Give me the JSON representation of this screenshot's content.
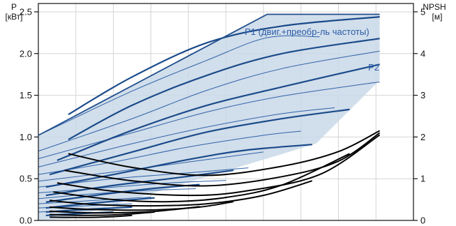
{
  "chart_data": {
    "type": "line",
    "left_axis": {
      "label_line1": "P",
      "label_line2": "[кВт]",
      "ticks": [
        "0.0",
        "0.5",
        "1.0",
        "1.5",
        "2.0",
        "2.5"
      ],
      "ylim": [
        0,
        2.6
      ]
    },
    "right_axis": {
      "label_line1": "NPSH",
      "label_line2": "[м]",
      "ticks": [
        "0",
        "1",
        "2",
        "3",
        "4",
        "5"
      ],
      "ylim": [
        0,
        5.2
      ]
    },
    "xlim": [
      0,
      10
    ],
    "grid": true,
    "annotations": {
      "p1": "P1 (двиг.+преобр-ль частоты)",
      "p2": "P2"
    },
    "colors": {
      "envelope_fill": "#c9d8e8",
      "envelope_edge": "#1f4e8c",
      "thick_curve": "#1a4a8a",
      "thin_curve": "#2f62a8",
      "npsh_curve": "#000000",
      "grid": "#d4d4d4",
      "annotation": "#2a5ca8"
    },
    "envelope": {
      "upper": [
        [
          0,
          1.02
        ],
        [
          6.1,
          2.47
        ],
        [
          9.1,
          2.47
        ]
      ],
      "lower_right": [
        [
          9.1,
          1.68
        ],
        [
          7.4,
          0.92
        ],
        [
          0.8,
          0.02
        ],
        [
          0,
          0
        ]
      ]
    },
    "p1_curves": [
      [
        [
          0.8,
          1.27
        ],
        [
          2.5,
          1.72
        ],
        [
          4.5,
          2.13
        ],
        [
          6.5,
          2.33
        ],
        [
          9.1,
          2.44
        ]
      ],
      [
        [
          0.8,
          0.97
        ],
        [
          2.5,
          1.38
        ],
        [
          4.5,
          1.74
        ],
        [
          6.5,
          2.0
        ],
        [
          9.1,
          2.18
        ]
      ],
      [
        [
          0.5,
          0.72
        ],
        [
          2.5,
          1.08
        ],
        [
          4.5,
          1.38
        ],
        [
          6.5,
          1.6
        ],
        [
          9.1,
          1.87
        ]
      ],
      [
        [
          0.3,
          0.55
        ],
        [
          2.5,
          0.82
        ],
        [
          4.5,
          1.06
        ],
        [
          6.5,
          1.22
        ],
        [
          8.3,
          1.33
        ]
      ],
      [
        [
          0.2,
          0.4
        ],
        [
          2.0,
          0.55
        ],
        [
          4.0,
          0.73
        ],
        [
          5.5,
          0.84
        ],
        [
          7.3,
          0.91
        ]
      ],
      [
        [
          0.2,
          0.3
        ],
        [
          2.0,
          0.42
        ],
        [
          3.5,
          0.5
        ],
        [
          5.2,
          0.6
        ]
      ],
      [
        [
          0.2,
          0.22
        ],
        [
          1.5,
          0.3
        ],
        [
          3.0,
          0.38
        ],
        [
          4.3,
          0.43
        ]
      ],
      [
        [
          0.2,
          0.15
        ],
        [
          1.5,
          0.21
        ],
        [
          3.1,
          0.27
        ]
      ],
      [
        [
          0.2,
          0.1
        ],
        [
          1.2,
          0.13
        ],
        [
          2.5,
          0.16
        ]
      ],
      [
        [
          0.2,
          0.06
        ],
        [
          1.0,
          0.08
        ],
        [
          2.0,
          0.1
        ]
      ]
    ],
    "p2_curves": [
      [
        [
          0,
          1.02
        ],
        [
          2.5,
          1.55
        ],
        [
          4.5,
          1.92
        ],
        [
          6.1,
          2.19
        ],
        [
          7.5,
          2.2
        ]
      ],
      [
        [
          0,
          0.83
        ],
        [
          2.5,
          1.22
        ],
        [
          4.5,
          1.56
        ],
        [
          6.5,
          1.82
        ],
        [
          9.1,
          2.03
        ]
      ],
      [
        [
          0,
          0.74
        ],
        [
          2.5,
          1.05
        ],
        [
          4.5,
          1.3
        ],
        [
          6.5,
          1.49
        ],
        [
          9.1,
          1.66
        ]
      ],
      [
        [
          0,
          0.64
        ],
        [
          2.5,
          0.92
        ],
        [
          4.5,
          1.12
        ],
        [
          6.5,
          1.28
        ],
        [
          7.9,
          1.35
        ]
      ],
      [
        [
          0,
          0.55
        ],
        [
          2.0,
          0.7
        ],
        [
          4.0,
          0.88
        ],
        [
          6.0,
          1.02
        ],
        [
          7.0,
          1.07
        ]
      ],
      [
        [
          0,
          0.47
        ],
        [
          2.0,
          0.58
        ],
        [
          4.0,
          0.7
        ],
        [
          6.0,
          0.82
        ]
      ],
      [
        [
          0,
          0.4
        ],
        [
          2.0,
          0.5
        ],
        [
          4.0,
          0.57
        ],
        [
          5.6,
          0.63
        ]
      ],
      [
        [
          0,
          0.33
        ],
        [
          2.0,
          0.4
        ],
        [
          3.5,
          0.45
        ],
        [
          5.0,
          0.48
        ]
      ],
      [
        [
          0,
          0.26
        ],
        [
          1.5,
          0.32
        ],
        [
          3.0,
          0.36
        ],
        [
          4.2,
          0.38
        ]
      ],
      [
        [
          0,
          0.2
        ],
        [
          1.5,
          0.24
        ],
        [
          3.0,
          0.28
        ]
      ],
      [
        [
          0,
          0.15
        ],
        [
          1.5,
          0.18
        ],
        [
          2.5,
          0.2
        ]
      ],
      [
        [
          0,
          0.1
        ],
        [
          1.0,
          0.12
        ],
        [
          2.0,
          0.13
        ]
      ]
    ],
    "npsh_curves": [
      [
        [
          0.8,
          1.6
        ],
        [
          2.5,
          1.27
        ],
        [
          4.5,
          1.08
        ],
        [
          6.5,
          1.3
        ],
        [
          8.0,
          1.65
        ],
        [
          9.1,
          2.15
        ]
      ],
      [
        [
          0.7,
          1.2
        ],
        [
          2.5,
          0.95
        ],
        [
          4.5,
          0.83
        ],
        [
          6.5,
          1.05
        ],
        [
          8.0,
          1.42
        ],
        [
          9.1,
          2.1
        ]
      ],
      [
        [
          0.5,
          0.9
        ],
        [
          2.0,
          0.7
        ],
        [
          4.0,
          0.6
        ],
        [
          5.5,
          0.7
        ],
        [
          7.5,
          1.1
        ],
        [
          9.1,
          2.05
        ]
      ],
      [
        [
          0.4,
          0.68
        ],
        [
          2.0,
          0.5
        ],
        [
          3.5,
          0.45
        ],
        [
          5.0,
          0.55
        ],
        [
          6.5,
          0.85
        ],
        [
          8.3,
          1.6
        ]
      ],
      [
        [
          0.3,
          0.48
        ],
        [
          1.5,
          0.38
        ],
        [
          3.0,
          0.35
        ],
        [
          4.5,
          0.4
        ],
        [
          6.0,
          0.6
        ],
        [
          7.3,
          0.95
        ]
      ],
      [
        [
          0.3,
          0.32
        ],
        [
          1.5,
          0.26
        ],
        [
          3.0,
          0.25
        ],
        [
          4.3,
          0.32
        ],
        [
          5.2,
          0.45
        ]
      ],
      [
        [
          0.3,
          0.22
        ],
        [
          1.5,
          0.18
        ],
        [
          2.8,
          0.2
        ],
        [
          3.5,
          0.25
        ],
        [
          4.3,
          0.33
        ]
      ],
      [
        [
          0.3,
          0.14
        ],
        [
          1.2,
          0.12
        ],
        [
          2.2,
          0.14
        ],
        [
          3.1,
          0.2
        ]
      ],
      [
        [
          0.3,
          0.08
        ],
        [
          1.2,
          0.07
        ],
        [
          2.0,
          0.09
        ],
        [
          2.5,
          0.12
        ]
      ]
    ]
  }
}
